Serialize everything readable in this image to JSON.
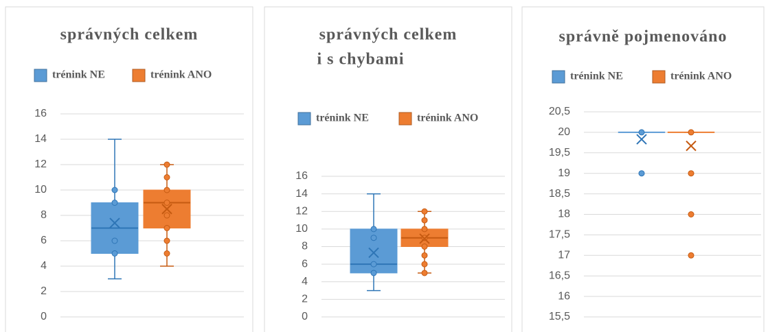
{
  "chart_data": [
    {
      "type": "box",
      "title": [
        "správných celkem"
      ],
      "ylim": [
        0,
        16
      ],
      "yticks": [
        0,
        2,
        4,
        6,
        8,
        10,
        12,
        14,
        16
      ],
      "grid": true,
      "series": [
        {
          "name": "trénink NE",
          "color": "#5b9bd5",
          "min": 3,
          "q1": 5,
          "median": 7,
          "q3": 9,
          "max": 14,
          "mean": 7.4,
          "points": [
            5,
            6,
            9,
            10
          ]
        },
        {
          "name": "trénink ANO",
          "color": "#ed7d31",
          "min": 4,
          "q1": 7,
          "median": 9,
          "q3": 10,
          "max": 12,
          "mean": 8.5,
          "points": [
            5,
            6,
            7,
            8,
            9,
            10,
            11,
            12
          ]
        }
      ]
    },
    {
      "type": "box",
      "title": [
        "správných celkem",
        "i s chybami"
      ],
      "ylim": [
        0,
        16
      ],
      "yticks": [
        0,
        2,
        4,
        6,
        8,
        10,
        12,
        14,
        16
      ],
      "grid": true,
      "series": [
        {
          "name": "trénink NE",
          "color": "#5b9bd5",
          "min": 3,
          "q1": 5,
          "median": 6,
          "q3": 10,
          "max": 14,
          "mean": 7.3,
          "points": [
            5,
            6,
            9,
            10
          ]
        },
        {
          "name": "trénink ANO",
          "color": "#ed7d31",
          "min": 5,
          "q1": 8,
          "median": 9,
          "q3": 10,
          "max": 12,
          "mean": 8.9,
          "points": [
            5,
            6,
            7,
            8,
            9,
            10,
            11,
            12
          ]
        }
      ]
    },
    {
      "type": "box",
      "title": [
        "správně pojmenováno"
      ],
      "ylim": [
        15.5,
        20.5
      ],
      "yticks": [
        {
          "value": 15.5,
          "label": "15,5"
        },
        16,
        {
          "value": 16.5,
          "label": "16,5"
        },
        17,
        {
          "value": 17.5,
          "label": "17,5"
        },
        18,
        {
          "value": 18.5,
          "label": "18,5"
        },
        19,
        {
          "value": 19.5,
          "label": "19,5"
        },
        20,
        {
          "value": 20.5,
          "label": "20,5"
        }
      ],
      "grid": true,
      "series": [
        {
          "name": "trénink NE",
          "color": "#5b9bd5",
          "min": 20,
          "q1": 20,
          "median": 20,
          "q3": 20,
          "max": 20,
          "mean": 19.83,
          "points": [
            19,
            20
          ]
        },
        {
          "name": "trénink ANO",
          "color": "#ed7d31",
          "min": 20,
          "q1": 20,
          "median": 20,
          "q3": 20,
          "max": 20,
          "mean": 19.67,
          "points": [
            17,
            18,
            19,
            20
          ]
        }
      ]
    }
  ]
}
